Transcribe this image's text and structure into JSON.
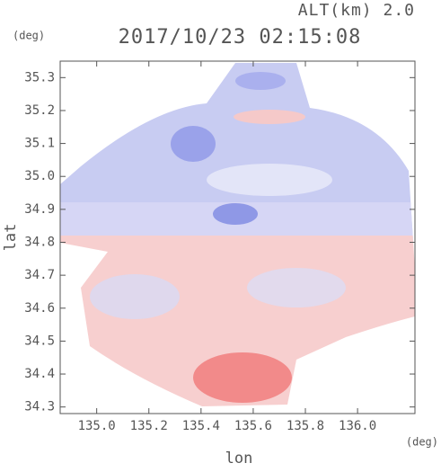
{
  "chart_data": {
    "type": "image",
    "title": "2017/10/23 02:15:08",
    "subtitle": "ALT(km) 2.0",
    "x_label": "lon",
    "x_unit": "(deg)",
    "y_label": "lat",
    "y_unit": "(deg)",
    "xlim": [
      134.86,
      136.22
    ],
    "xticks": [
      {
        "value": 135.0,
        "label": "135.0"
      },
      135.2,
      135.4,
      135.6,
      135.8,
      {
        "value": 136.0,
        "label": "136.0"
      }
    ],
    "ylim": [
      34.28,
      35.35
    ],
    "yticks": [
      34.3,
      34.4,
      34.5,
      34.6,
      34.7,
      34.8,
      34.9,
      {
        "value": 35.0,
        "label": "35.0"
      },
      35.1,
      35.2,
      35.3
    ]
  }
}
